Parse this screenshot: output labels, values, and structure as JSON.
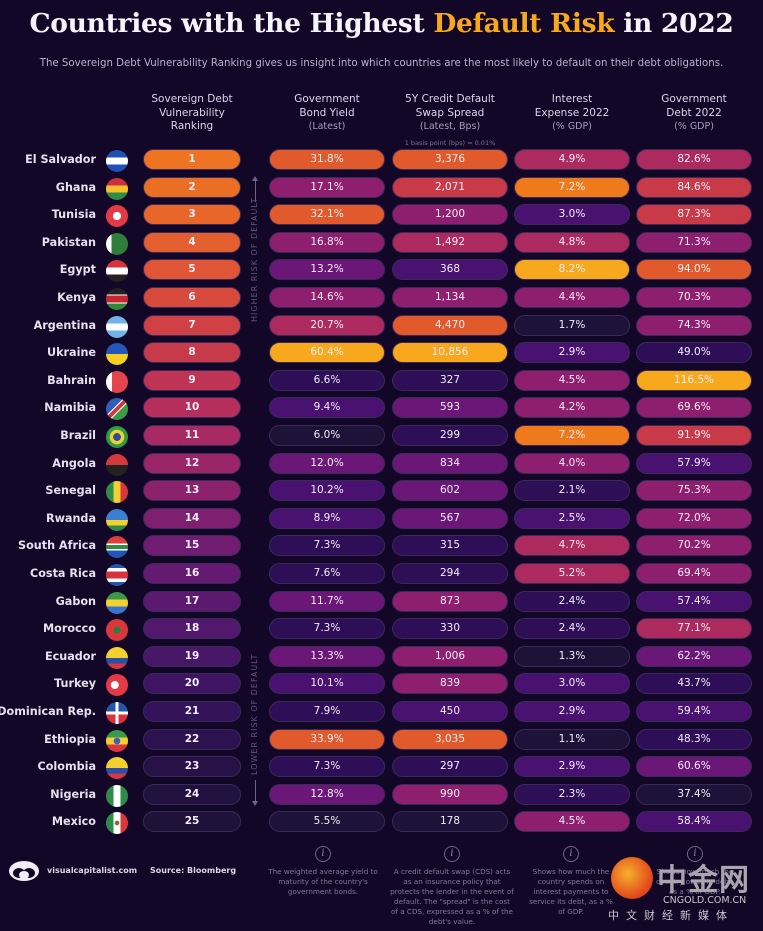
{
  "header": {
    "title_before": "Countries with the Highest ",
    "title_highlight": "Default Risk",
    "title_after": " in 2022",
    "subtitle": "The Sovereign Debt Vulnerability Ranking gives us insight into which countries are the most likely to default on their debt obligations."
  },
  "columns": [
    {
      "key": "rank",
      "title_lines": [
        "Sovereign Debt",
        "Vulnerability",
        "Ranking"
      ],
      "sub": "",
      "note": ""
    },
    {
      "key": "bond",
      "title_lines": [
        "Government",
        "Bond Yield"
      ],
      "sub": "(Latest)",
      "note": ""
    },
    {
      "key": "cds",
      "title_lines": [
        "5Y Credit Default",
        "Swap Spread"
      ],
      "sub": "(Latest, Bps)",
      "note": "1 basis point (bps) = 0.01%"
    },
    {
      "key": "interest",
      "title_lines": [
        "Interest",
        "Expense 2022"
      ],
      "sub": "(% GDP)",
      "note": ""
    },
    {
      "key": "debt",
      "title_lines": [
        "Government",
        "Debt 2022"
      ],
      "sub": "(% GDP)",
      "note": ""
    }
  ],
  "side_labels": {
    "higher": "HIGHER RISK OF DEFAULT",
    "lower": "LOWER RISK OF DEFAULT"
  },
  "palette": {
    "bg": "#120726",
    "highlight": "#f8a81d",
    "scale": [
      "#1d1238",
      "#2e0f57",
      "#4a1270",
      "#6a1777",
      "#8e1f6e",
      "#ac2a5e",
      "#c93a48",
      "#e15a2c",
      "#ef7a1c",
      "#f8a81d"
    ]
  },
  "chart_data": {
    "type": "table",
    "title": "Countries with the Highest Default Risk in 2022",
    "columns": [
      "Country",
      "Sovereign Debt Vulnerability Ranking",
      "Government Bond Yield (Latest)",
      "5Y Credit Default Swap Spread (Latest, Bps)",
      "Interest Expense 2022 (% GDP)",
      "Government Debt 2022 (% GDP)"
    ],
    "rows": [
      {
        "country": "El Salvador",
        "flag": "el-salvador",
        "rank": "1",
        "bond": "31.8%",
        "cds": "3,376",
        "interest": "4.9%",
        "debt": "82.6%"
      },
      {
        "country": "Ghana",
        "flag": "ghana",
        "rank": "2",
        "bond": "17.1%",
        "cds": "2,071",
        "interest": "7.2%",
        "debt": "84.6%"
      },
      {
        "country": "Tunisia",
        "flag": "tunisia",
        "rank": "3",
        "bond": "32.1%",
        "cds": "1,200",
        "interest": "3.0%",
        "debt": "87.3%"
      },
      {
        "country": "Pakistan",
        "flag": "pakistan",
        "rank": "4",
        "bond": "16.8%",
        "cds": "1,492",
        "interest": "4.8%",
        "debt": "71.3%"
      },
      {
        "country": "Egypt",
        "flag": "egypt",
        "rank": "5",
        "bond": "13.2%",
        "cds": "368",
        "interest": "8.2%",
        "debt": "94.0%"
      },
      {
        "country": "Kenya",
        "flag": "kenya",
        "rank": "6",
        "bond": "14.6%",
        "cds": "1,134",
        "interest": "4.4%",
        "debt": "70.3%"
      },
      {
        "country": "Argentina",
        "flag": "argentina",
        "rank": "7",
        "bond": "20.7%",
        "cds": "4,470",
        "interest": "1.7%",
        "debt": "74.3%"
      },
      {
        "country": "Ukraine",
        "flag": "ukraine",
        "rank": "8",
        "bond": "60.4%",
        "cds": "10,856",
        "interest": "2.9%",
        "debt": "49.0%"
      },
      {
        "country": "Bahrain",
        "flag": "bahrain",
        "rank": "9",
        "bond": "6.6%",
        "cds": "327",
        "interest": "4.5%",
        "debt": "116.5%"
      },
      {
        "country": "Namibia",
        "flag": "namibia",
        "rank": "10",
        "bond": "9.4%",
        "cds": "593",
        "interest": "4.2%",
        "debt": "69.6%"
      },
      {
        "country": "Brazil",
        "flag": "brazil",
        "rank": "11",
        "bond": "6.0%",
        "cds": "299",
        "interest": "7.2%",
        "debt": "91.9%"
      },
      {
        "country": "Angola",
        "flag": "angola",
        "rank": "12",
        "bond": "12.0%",
        "cds": "834",
        "interest": "4.0%",
        "debt": "57.9%"
      },
      {
        "country": "Senegal",
        "flag": "senegal",
        "rank": "13",
        "bond": "10.2%",
        "cds": "602",
        "interest": "2.1%",
        "debt": "75.3%"
      },
      {
        "country": "Rwanda",
        "flag": "rwanda",
        "rank": "14",
        "bond": "8.9%",
        "cds": "567",
        "interest": "2.5%",
        "debt": "72.0%"
      },
      {
        "country": "South Africa",
        "flag": "south-africa",
        "rank": "15",
        "bond": "7.3%",
        "cds": "315",
        "interest": "4.7%",
        "debt": "70.2%"
      },
      {
        "country": "Costa Rica",
        "flag": "costa-rica",
        "rank": "16",
        "bond": "7.6%",
        "cds": "294",
        "interest": "5.2%",
        "debt": "69.4%"
      },
      {
        "country": "Gabon",
        "flag": "gabon",
        "rank": "17",
        "bond": "11.7%",
        "cds": "873",
        "interest": "2.4%",
        "debt": "57.4%"
      },
      {
        "country": "Morocco",
        "flag": "morocco",
        "rank": "18",
        "bond": "7.3%",
        "cds": "330",
        "interest": "2.4%",
        "debt": "77.1%"
      },
      {
        "country": "Ecuador",
        "flag": "ecuador",
        "rank": "19",
        "bond": "13.3%",
        "cds": "1,006",
        "interest": "1.3%",
        "debt": "62.2%"
      },
      {
        "country": "Turkey",
        "flag": "turkey",
        "rank": "20",
        "bond": "10.1%",
        "cds": "839",
        "interest": "3.0%",
        "debt": "43.7%"
      },
      {
        "country": "Dominican Rep.",
        "flag": "dominican-rep",
        "rank": "21",
        "bond": "7.9%",
        "cds": "450",
        "interest": "2.9%",
        "debt": "59.4%"
      },
      {
        "country": "Ethiopia",
        "flag": "ethiopia",
        "rank": "22",
        "bond": "33.9%",
        "cds": "3,035",
        "interest": "1.1%",
        "debt": "48.3%"
      },
      {
        "country": "Colombia",
        "flag": "colombia",
        "rank": "23",
        "bond": "7.3%",
        "cds": "297",
        "interest": "2.9%",
        "debt": "60.6%"
      },
      {
        "country": "Nigeria",
        "flag": "nigeria",
        "rank": "24",
        "bond": "12.8%",
        "cds": "990",
        "interest": "2.3%",
        "debt": "37.4%"
      },
      {
        "country": "Mexico",
        "flag": "mexico",
        "rank": "25",
        "bond": "5.5%",
        "cds": "178",
        "interest": "4.5%",
        "debt": "58.4%"
      }
    ]
  },
  "footer": {
    "site": "visualcapitalist.com",
    "source": "Source: Bloomberg",
    "info_icon": "i",
    "notes": {
      "bond": "The weighted average yield to maturity of the country's government bonds.",
      "cds": "A credit default swap (CDS) acts as an insurance policy that protects the lender in the event of default. The \"spread\" is the cost of a CDS, expressed as a % of the debt's value.",
      "interest": "Shows how much the country spends on interest payments to service its debt, as a % of GDP.",
      "debt": "Shows how much the country owes in debt, as a % of GDP."
    }
  },
  "watermark": {
    "name": "中金网",
    "domain": "CNGOLD.COM.CN",
    "tagline": "中文财经新媒体"
  }
}
